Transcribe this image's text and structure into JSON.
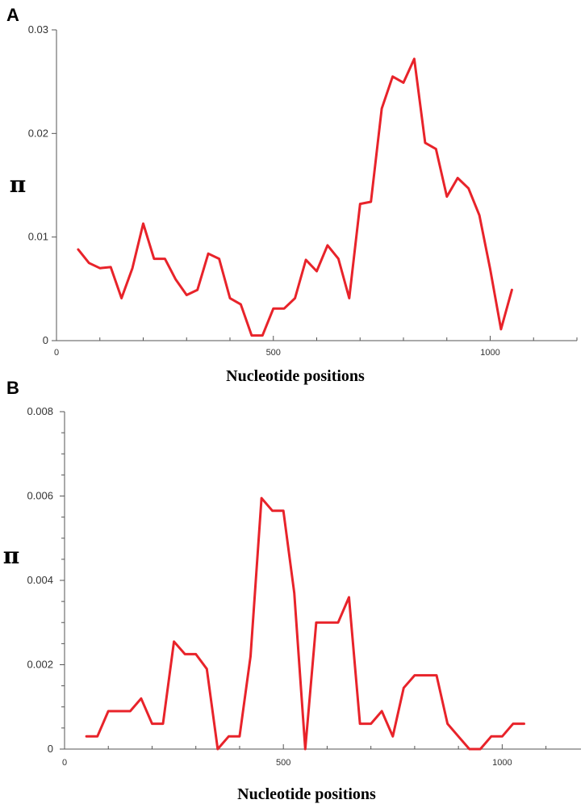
{
  "chart_data": [
    {
      "panel": "A",
      "type": "line",
      "xlabel": "Nucleotide positions",
      "ylabel": "π",
      "xlim": [
        0,
        1200
      ],
      "ylim": [
        0,
        0.03
      ],
      "x_ticks": [
        0,
        500,
        1000
      ],
      "x_tick_labels": [
        "0",
        "500",
        "1000"
      ],
      "y_ticks": [
        0,
        0.01,
        0.02,
        0.03
      ],
      "y_tick_labels": [
        "0",
        "0.01",
        "0.02",
        "0.03"
      ],
      "grid": false,
      "color": "#e8232a",
      "series": [
        {
          "x": [
            50,
            75,
            100,
            125,
            150,
            175,
            200,
            225,
            250,
            275,
            300,
            325,
            350,
            375,
            400,
            425,
            450,
            475,
            500,
            525,
            550,
            575,
            600,
            625,
            650,
            675,
            700,
            725,
            750,
            775,
            800,
            825,
            850,
            875,
            900,
            925,
            950,
            975,
            1000,
            1025,
            1050
          ],
          "values": [
            0.0088,
            0.0075,
            0.007,
            0.0071,
            0.0041,
            0.007,
            0.0113,
            0.0079,
            0.0079,
            0.0059,
            0.0044,
            0.0049,
            0.0084,
            0.0079,
            0.0041,
            0.0035,
            0.0005,
            0.0005,
            0.0031,
            0.0031,
            0.0041,
            0.0078,
            0.0067,
            0.0092,
            0.0079,
            0.0041,
            0.0132,
            0.0134,
            0.0224,
            0.0255,
            0.0249,
            0.0272,
            0.0191,
            0.0185,
            0.0139,
            0.0157,
            0.0147,
            0.0121,
            0.0069,
            0.0011,
            0.0049
          ]
        }
      ]
    },
    {
      "panel": "B",
      "type": "line",
      "xlabel": "Nucleotide positions",
      "ylabel": "π",
      "xlim": [
        0,
        1180
      ],
      "ylim": [
        0,
        0.008
      ],
      "x_ticks": [
        0,
        500,
        1000
      ],
      "x_tick_labels": [
        "0",
        "500",
        "1000"
      ],
      "y_ticks": [
        0,
        0.002,
        0.004,
        0.006,
        0.008
      ],
      "y_tick_labels": [
        "0",
        "0.002",
        "0.004",
        "0.006",
        "0.008"
      ],
      "y_minor_step": 0.0005,
      "grid": false,
      "color": "#e8232a",
      "series": [
        {
          "x": [
            50,
            75,
            100,
            125,
            150,
            175,
            200,
            225,
            250,
            275,
            300,
            325,
            350,
            375,
            400,
            425,
            450,
            475,
            500,
            525,
            550,
            575,
            600,
            625,
            650,
            675,
            700,
            725,
            750,
            775,
            800,
            825,
            850,
            875,
            900,
            925,
            950,
            975,
            1000,
            1025,
            1050
          ],
          "values": [
            0.0003,
            0.0003,
            0.0009,
            0.0009,
            0.0009,
            0.0012,
            0.0006,
            0.0006,
            0.00255,
            0.00225,
            0.00225,
            0.0019,
            0.0,
            0.0003,
            0.0003,
            0.0022,
            0.00595,
            0.00565,
            0.00565,
            0.0037,
            0.0,
            0.003,
            0.003,
            0.003,
            0.0036,
            0.0006,
            0.0006,
            0.0009,
            0.0003,
            0.00145,
            0.00175,
            0.00175,
            0.00175,
            0.0006,
            0.0003,
            0.0,
            0.0,
            0.0003,
            0.0003,
            0.0006,
            0.0006
          ]
        }
      ]
    }
  ]
}
